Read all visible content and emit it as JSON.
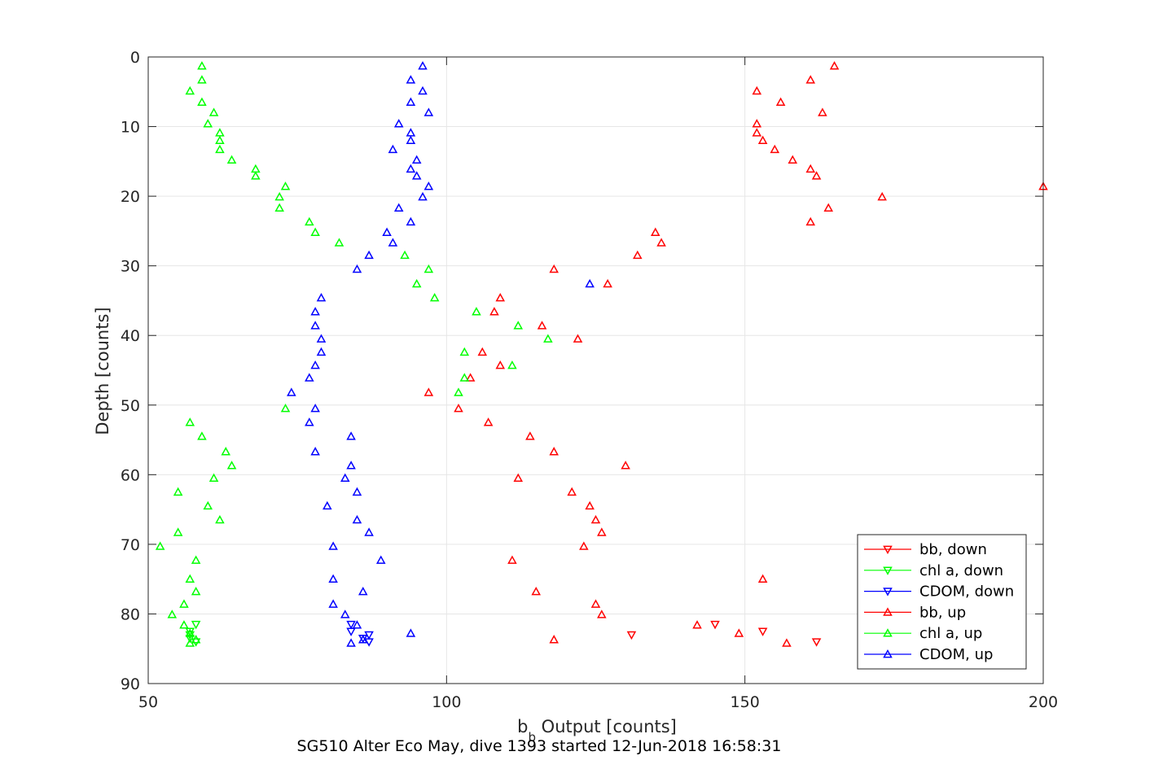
{
  "chart_data": {
    "type": "scatter",
    "title": "",
    "caption": "SG510 Alter Eco May, dive 1393 started 12-Jun-2018 16:58:31",
    "xlabel_base": "b",
    "xlabel_sub": "b",
    "xlabel_rest": " Output [counts]",
    "ylabel": "Depth [counts]",
    "xlim": [
      50,
      200
    ],
    "ylim": [
      0,
      90
    ],
    "y_reversed": true,
    "grid": true,
    "legend_position": "bottom-right",
    "xticks": [
      "50",
      "100",
      "150",
      "200"
    ],
    "yticks": [
      "0",
      "10",
      "20",
      "30",
      "40",
      "50",
      "60",
      "70",
      "80",
      "90"
    ],
    "colors": {
      "bb": "#ff0000",
      "chl": "#00ff00",
      "cdom": "#0000ff",
      "axis": "#262626",
      "grid": "#e6e6e6"
    },
    "series": [
      {
        "name": "bb, down",
        "color": "#ff0000",
        "marker": "triangle-down",
        "points": [
          [
            145,
            81.5
          ],
          [
            153,
            82.5
          ],
          [
            131,
            83
          ],
          [
            162,
            84
          ]
        ]
      },
      {
        "name": "chl a, down",
        "color": "#00ff00",
        "marker": "triangle-down",
        "points": [
          [
            58,
            81.5
          ],
          [
            57,
            82.5
          ],
          [
            57,
            83
          ],
          [
            57,
            83.5
          ],
          [
            58,
            84
          ]
        ]
      },
      {
        "name": "CDOM, down",
        "color": "#0000ff",
        "marker": "triangle-down",
        "points": [
          [
            84,
            81.5
          ],
          [
            84,
            82.5
          ],
          [
            87,
            83
          ],
          [
            86,
            83.5
          ],
          [
            87,
            84
          ]
        ]
      },
      {
        "name": "bb, up",
        "color": "#ff0000",
        "marker": "triangle-up",
        "points": [
          [
            165,
            1.3
          ],
          [
            161,
            3.3
          ],
          [
            152,
            4.9
          ],
          [
            156,
            6.5
          ],
          [
            163,
            8
          ],
          [
            152,
            9.6
          ],
          [
            152,
            10.9
          ],
          [
            153,
            12
          ],
          [
            155,
            13.3
          ],
          [
            158,
            14.8
          ],
          [
            161,
            16.1
          ],
          [
            162,
            17.1
          ],
          [
            200,
            18.6
          ],
          [
            173,
            20.1
          ],
          [
            164,
            21.7
          ],
          [
            161,
            23.7
          ],
          [
            135,
            25.2
          ],
          [
            136,
            26.7
          ],
          [
            132,
            28.5
          ],
          [
            118,
            30.5
          ],
          [
            127,
            32.6
          ],
          [
            109,
            34.6
          ],
          [
            108,
            36.6
          ],
          [
            116,
            38.6
          ],
          [
            122,
            40.5
          ],
          [
            106,
            42.4
          ],
          [
            109,
            44.3
          ],
          [
            104,
            46.1
          ],
          [
            97,
            48.2
          ],
          [
            102,
            50.5
          ],
          [
            107,
            52.5
          ],
          [
            114,
            54.5
          ],
          [
            118,
            56.7
          ],
          [
            130,
            58.7
          ],
          [
            112,
            60.5
          ],
          [
            121,
            62.5
          ],
          [
            124,
            64.5
          ],
          [
            125,
            66.5
          ],
          [
            126,
            68.3
          ],
          [
            123,
            70.3
          ],
          [
            111,
            72.3
          ],
          [
            153,
            75
          ],
          [
            115,
            76.8
          ],
          [
            125,
            78.6
          ],
          [
            126,
            80.1
          ],
          [
            142,
            81.6
          ],
          [
            149,
            82.8
          ],
          [
            118,
            83.7
          ],
          [
            157,
            84.2
          ]
        ]
      },
      {
        "name": "chl a, up",
        "color": "#00ff00",
        "marker": "triangle-up",
        "points": [
          [
            59,
            1.3
          ],
          [
            59,
            3.3
          ],
          [
            57,
            4.9
          ],
          [
            59,
            6.5
          ],
          [
            61,
            8
          ],
          [
            60,
            9.6
          ],
          [
            62,
            10.9
          ],
          [
            62,
            12
          ],
          [
            62,
            13.3
          ],
          [
            64,
            14.8
          ],
          [
            68,
            16.1
          ],
          [
            68,
            17.1
          ],
          [
            73,
            18.6
          ],
          [
            72,
            20.1
          ],
          [
            72,
            21.7
          ],
          [
            77,
            23.7
          ],
          [
            78,
            25.2
          ],
          [
            82,
            26.7
          ],
          [
            93,
            28.5
          ],
          [
            97,
            30.5
          ],
          [
            95,
            32.6
          ],
          [
            98,
            34.6
          ],
          [
            105,
            36.6
          ],
          [
            112,
            38.6
          ],
          [
            117,
            40.5
          ],
          [
            103,
            42.4
          ],
          [
            111,
            44.3
          ],
          [
            103,
            46.1
          ],
          [
            102,
            48.2
          ],
          [
            73,
            50.5
          ],
          [
            57,
            52.5
          ],
          [
            59,
            54.5
          ],
          [
            63,
            56.7
          ],
          [
            64,
            58.7
          ],
          [
            61,
            60.5
          ],
          [
            55,
            62.5
          ],
          [
            60,
            64.5
          ],
          [
            62,
            66.5
          ],
          [
            55,
            68.3
          ],
          [
            52,
            70.3
          ],
          [
            58,
            72.3
          ],
          [
            57,
            75
          ],
          [
            58,
            76.8
          ],
          [
            56,
            78.6
          ],
          [
            54,
            80.1
          ],
          [
            56,
            81.6
          ],
          [
            57,
            82.8
          ],
          [
            58,
            83.7
          ],
          [
            57,
            84.2
          ]
        ]
      },
      {
        "name": "CDOM, up",
        "color": "#0000ff",
        "marker": "triangle-up",
        "points": [
          [
            96,
            1.3
          ],
          [
            94,
            3.3
          ],
          [
            96,
            4.9
          ],
          [
            94,
            6.5
          ],
          [
            97,
            8
          ],
          [
            92,
            9.6
          ],
          [
            94,
            10.9
          ],
          [
            94,
            12
          ],
          [
            91,
            13.3
          ],
          [
            95,
            14.8
          ],
          [
            94,
            16.1
          ],
          [
            95,
            17.1
          ],
          [
            97,
            18.6
          ],
          [
            96,
            20.1
          ],
          [
            92,
            21.7
          ],
          [
            94,
            23.7
          ],
          [
            90,
            25.2
          ],
          [
            91,
            26.7
          ],
          [
            87,
            28.5
          ],
          [
            85,
            30.5
          ],
          [
            124,
            32.6
          ],
          [
            79,
            34.6
          ],
          [
            78,
            36.6
          ],
          [
            78,
            38.6
          ],
          [
            79,
            40.5
          ],
          [
            79,
            42.4
          ],
          [
            78,
            44.3
          ],
          [
            77,
            46.1
          ],
          [
            74,
            48.2
          ],
          [
            78,
            50.5
          ],
          [
            77,
            52.5
          ],
          [
            84,
            54.5
          ],
          [
            78,
            56.7
          ],
          [
            84,
            58.7
          ],
          [
            83,
            60.5
          ],
          [
            85,
            62.5
          ],
          [
            80,
            64.5
          ],
          [
            85,
            66.5
          ],
          [
            87,
            68.3
          ],
          [
            81,
            70.3
          ],
          [
            89,
            72.3
          ],
          [
            81,
            75
          ],
          [
            86,
            76.8
          ],
          [
            81,
            78.6
          ],
          [
            83,
            80.1
          ],
          [
            85,
            81.6
          ],
          [
            94,
            82.8
          ],
          [
            86,
            83.7
          ],
          [
            84,
            84.2
          ]
        ]
      }
    ]
  }
}
